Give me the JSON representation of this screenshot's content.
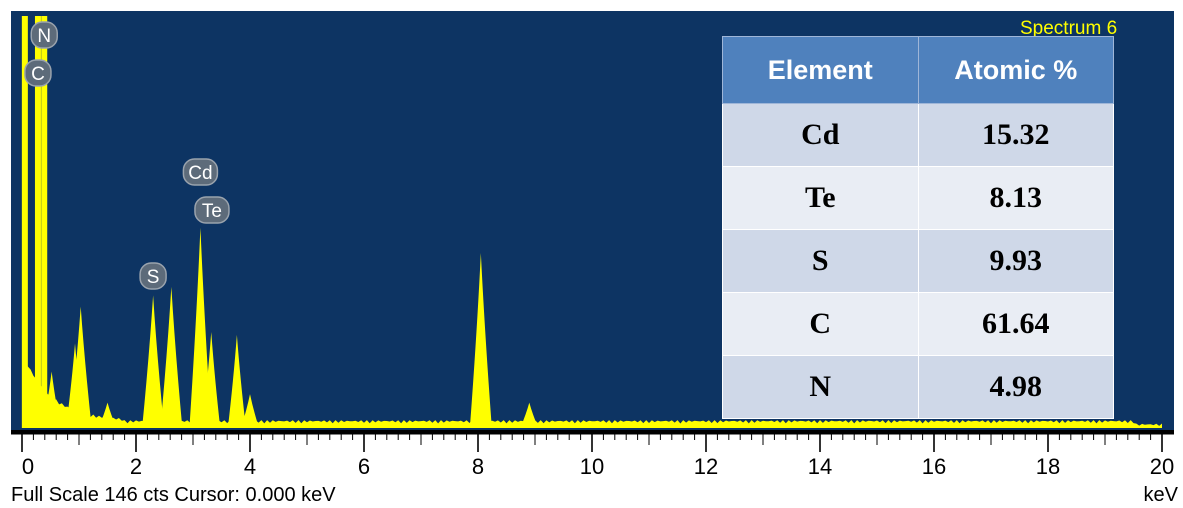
{
  "chart_data": {
    "type": "line",
    "title": "Spectrum 6",
    "xlabel": "keV",
    "xlim": [
      0,
      20
    ],
    "x_ticks": [
      "0",
      "2",
      "4",
      "6",
      "8",
      "10",
      "12",
      "14",
      "16",
      "18",
      "20"
    ],
    "footer": "Full Scale 146 cts  Cursor: 0.000 keV",
    "colors": {
      "background": "#0d3463",
      "spectrum": "#ffff00",
      "table_header": "#4f81bd"
    },
    "peaks": [
      {
        "x": 0.05,
        "y": 146
      },
      {
        "x": 0.28,
        "y": 146
      },
      {
        "x": 0.39,
        "y": 146
      },
      {
        "x": 0.52,
        "y": 20
      },
      {
        "x": 0.93,
        "y": 30
      },
      {
        "x": 1.03,
        "y": 43
      },
      {
        "x": 1.5,
        "y": 9
      },
      {
        "x": 2.3,
        "y": 47
      },
      {
        "x": 2.62,
        "y": 50
      },
      {
        "x": 3.13,
        "y": 71
      },
      {
        "x": 3.32,
        "y": 34
      },
      {
        "x": 3.77,
        "y": 33
      },
      {
        "x": 4.0,
        "y": 12
      },
      {
        "x": 8.05,
        "y": 62
      },
      {
        "x": 8.9,
        "y": 9
      }
    ],
    "element_markers": [
      {
        "label": "N",
        "x": 0.39
      },
      {
        "label": "C",
        "x": 0.28
      },
      {
        "label": "Cd",
        "x": 3.13
      },
      {
        "label": "Te",
        "x": 3.28
      },
      {
        "label": "S",
        "x": 2.3
      }
    ],
    "table": {
      "columns": [
        "Element",
        "Atomic %"
      ],
      "rows": [
        [
          "Cd",
          "15.32"
        ],
        [
          "Te",
          "8.13"
        ],
        [
          "S",
          "9.93"
        ],
        [
          "C",
          "61.64"
        ],
        [
          "N",
          "4.98"
        ]
      ]
    }
  }
}
